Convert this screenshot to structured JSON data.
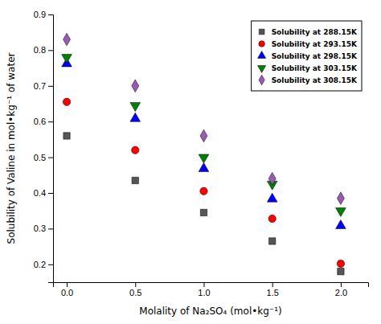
{
  "chart_data": {
    "type": "scatter",
    "xlabel": "Molality of Na₂SO₄ (mol•kg⁻¹)",
    "ylabel": "Solubility of Valine in mol•kg⁻¹ of water",
    "x": [
      0.0,
      0.5,
      1.0,
      1.5,
      2.0
    ],
    "series": [
      {
        "name": "Solubility at 288.15K",
        "color": "#555555",
        "marker": "square",
        "values": [
          0.56,
          0.435,
          0.345,
          0.265,
          0.18
        ]
      },
      {
        "name": "Solubility at 293.15K",
        "color": "#ff0000",
        "marker": "circle",
        "values": [
          0.655,
          0.52,
          0.405,
          0.328,
          0.202
        ]
      },
      {
        "name": "Solubility at 298.15K",
        "color": "#0000ff",
        "marker": "triangle-up",
        "values": [
          0.762,
          0.608,
          0.468,
          0.383,
          0.308
        ]
      },
      {
        "name": "Solubility at 303.15K",
        "color": "#008000",
        "marker": "triangle-down",
        "values": [
          0.78,
          0.645,
          0.5,
          0.425,
          0.35
        ]
      },
      {
        "name": "Solubility at 308.15K",
        "color": "#9b59b6",
        "marker": "diamond",
        "values": [
          0.83,
          0.7,
          0.56,
          0.44,
          0.385
        ]
      }
    ],
    "xlim": [
      -0.1,
      2.2
    ],
    "ylim": [
      0.15,
      0.9
    ],
    "xticks": [
      {
        "value": 0.0,
        "label": "0.0"
      },
      0.5,
      {
        "value": 1.0,
        "label": "1.0"
      },
      1.5,
      {
        "value": 2.0,
        "label": "2.0"
      }
    ],
    "yticks": [
      0.2,
      0.3,
      0.4,
      0.5,
      0.6,
      0.7,
      0.8,
      0.9
    ],
    "legend": "upper right",
    "grid": false
  }
}
